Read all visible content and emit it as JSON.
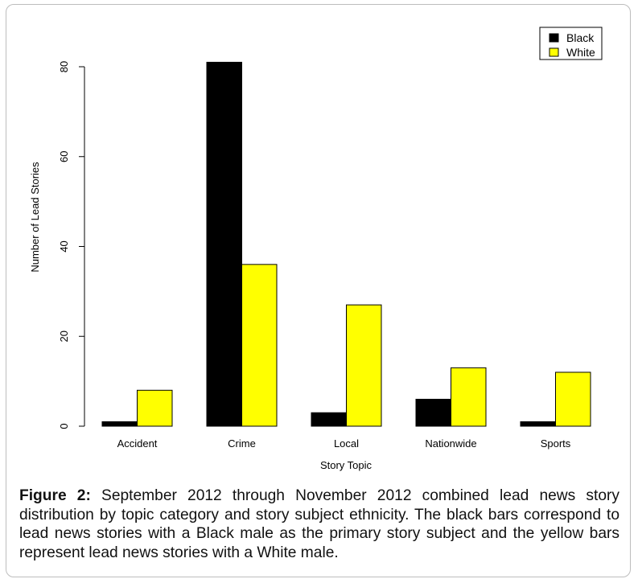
{
  "chart_data": {
    "type": "bar",
    "categories": [
      "Accident",
      "Crime",
      "Local",
      "Nationwide",
      "Sports"
    ],
    "series": [
      {
        "name": "Black",
        "values": [
          1,
          81,
          3,
          6,
          1
        ],
        "color": "#000000"
      },
      {
        "name": "White",
        "values": [
          8,
          36,
          27,
          13,
          12
        ],
        "color": "#ffff00"
      }
    ],
    "xlabel": "Story Topic",
    "ylabel": "Number of Lead Stories",
    "ylim": [
      0,
      80
    ],
    "yticks": [
      "0",
      "20",
      "40",
      "60",
      "80"
    ],
    "legend_position": "top-right",
    "grid": false
  },
  "caption": {
    "label": "Figure 2:",
    "text": " September 2012 through November 2012 combined lead news story distribution by topic category and story subject ethnicity. The black bars correspond to lead news stories with a Black male as the primary story subject and the yellow bars represent lead news stories with a White male."
  }
}
